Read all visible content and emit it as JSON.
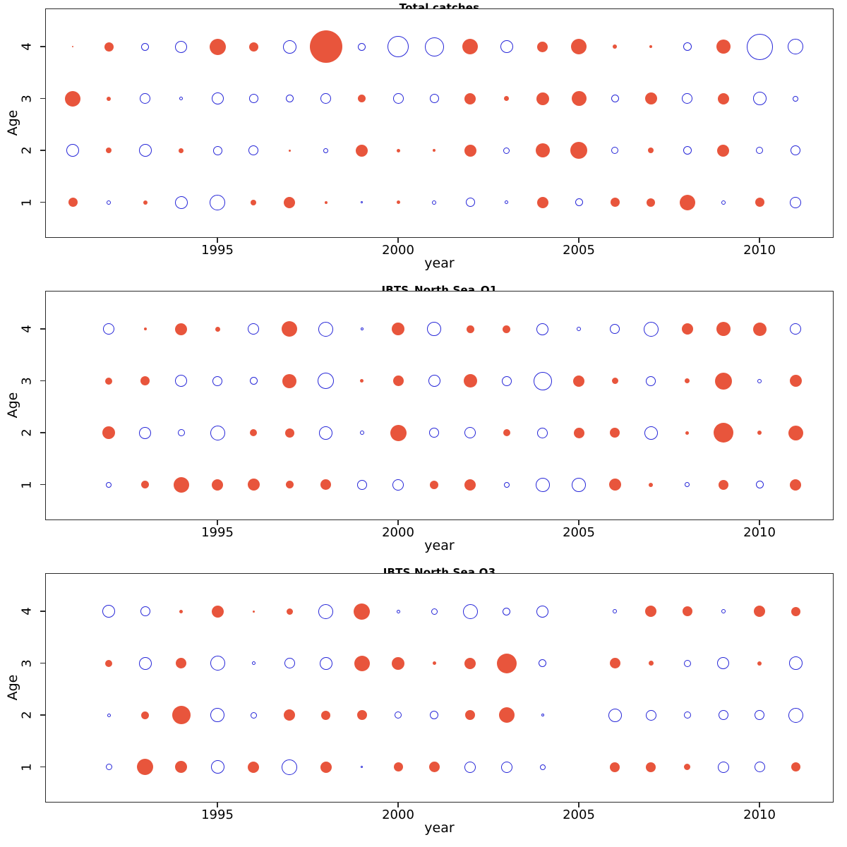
{
  "figure": {
    "background": "#ffffff",
    "positive_color": "#e8553c",
    "negative_color": "#2727d8",
    "axis_color": "#2b2b2b"
  },
  "chart_data": [
    {
      "type": "scatter",
      "subtype": "bubble-residual-plot",
      "title": "Total catches",
      "xlabel": "year",
      "ylabel": "Age",
      "x_ticks": [
        1995,
        2000,
        2005,
        2010
      ],
      "y_ticks": [
        4,
        3,
        2,
        1
      ],
      "xlim": [
        1990.3,
        2011.9
      ],
      "ylim": [
        0.3,
        4.7
      ],
      "grid": false,
      "legend_position": "none",
      "encoding": {
        "positive": "filled red circle",
        "negative": "open blue circle",
        "value": "signed bubble radius (px)"
      },
      "years": [
        1991,
        1992,
        1993,
        1994,
        1995,
        1996,
        1997,
        1998,
        1999,
        2000,
        2001,
        2002,
        2003,
        2004,
        2005,
        2006,
        2007,
        2008,
        2009,
        2010,
        2011
      ],
      "series": [
        {
          "name": "age 4",
          "age": 4,
          "values": [
            1,
            6.5,
            -5.5,
            -8.5,
            11.5,
            6.5,
            -9.5,
            23,
            -5.5,
            -15,
            -13.5,
            11,
            -9,
            7.5,
            11,
            3,
            2,
            -6,
            10,
            -18.5,
            -11
          ]
        },
        {
          "name": "age 3",
          "age": 3,
          "values": [
            11,
            3,
            -7.5,
            -2.5,
            -8.5,
            -6.5,
            -5.5,
            -7.5,
            5.5,
            -7.5,
            -6.5,
            8,
            3.5,
            9,
            10.5,
            -5.5,
            8.5,
            -7.5,
            8,
            -9.5,
            -4
          ]
        },
        {
          "name": "age 2",
          "age": 2,
          "values": [
            -9,
            4,
            -9,
            3.5,
            -6.5,
            -7,
            1.5,
            -3.5,
            8.5,
            2.5,
            2,
            8.5,
            -4.5,
            10,
            12,
            -5,
            4,
            -6,
            8.5,
            -5,
            -7
          ]
        },
        {
          "name": "age 1",
          "age": 1,
          "values": [
            6.5,
            -3,
            3,
            -9,
            -11,
            4,
            8,
            2,
            -1.5,
            2.5,
            -3,
            -6.5,
            -2.5,
            8,
            -5.5,
            6.5,
            6,
            11,
            -3,
            6.5,
            -8
          ]
        }
      ]
    },
    {
      "type": "scatter",
      "subtype": "bubble-residual-plot",
      "title": "IBTS_North Sea_Q1",
      "xlabel": "year",
      "ylabel": "Age",
      "x_ticks": [
        1995,
        2000,
        2005,
        2010
      ],
      "y_ticks": [
        4,
        3,
        2,
        1
      ],
      "xlim": [
        1990.3,
        2011.9
      ],
      "ylim": [
        0.3,
        4.7
      ],
      "grid": false,
      "legend_position": "none",
      "encoding": {
        "positive": "filled red circle",
        "negative": "open blue circle",
        "value": "signed bubble radius (px)"
      },
      "years": [
        1992,
        1993,
        1994,
        1995,
        1996,
        1997,
        1998,
        1999,
        2000,
        2001,
        2002,
        2003,
        2004,
        2005,
        2006,
        2007,
        2008,
        2009,
        2010,
        2011
      ],
      "series": [
        {
          "name": "age 4",
          "age": 4,
          "values": [
            -8,
            2,
            8.5,
            3.5,
            -8,
            11,
            -10.5,
            -2,
            9,
            -10,
            5.5,
            5.5,
            -8.5,
            -3,
            -7,
            -10.5,
            8,
            10,
            9.5,
            -8
          ]
        },
        {
          "name": "age 3",
          "age": 3,
          "values": [
            5,
            6.5,
            -8.5,
            -7,
            -5.5,
            10,
            -11.5,
            2.5,
            7.5,
            -8.5,
            9.5,
            -7,
            -13,
            8,
            4.5,
            -7,
            3.5,
            12,
            -3,
            8.5
          ]
        },
        {
          "name": "age 2",
          "age": 2,
          "values": [
            9,
            -8.5,
            -5,
            -10.5,
            5,
            6.5,
            -9.5,
            -3,
            11.5,
            -7,
            -8,
            5,
            -7.5,
            7.5,
            7,
            -9.5,
            2.5,
            14,
            3,
            10.5
          ]
        },
        {
          "name": "age 1",
          "age": 1,
          "values": [
            -4,
            5.5,
            11,
            8,
            8.5,
            5.5,
            7.5,
            -7,
            -8,
            6,
            8,
            -4,
            -10,
            -10,
            8.5,
            3,
            -3.5,
            7,
            -5.5,
            8
          ]
        }
      ]
    },
    {
      "type": "scatter",
      "subtype": "bubble-residual-plot",
      "title": "IBTS North Sea Q3",
      "xlabel": "year",
      "ylabel": "Age",
      "x_ticks": [
        1995,
        2000,
        2005,
        2010
      ],
      "y_ticks": [
        4,
        3,
        2,
        1
      ],
      "xlim": [
        1990.3,
        2011.9
      ],
      "ylim": [
        0.3,
        4.7
      ],
      "grid": false,
      "legend_position": "none",
      "encoding": {
        "positive": "filled red circle",
        "negative": "open blue circle",
        "value": "signed bubble radius (px)",
        "zero": "no mark (no data in 2005)"
      },
      "years": [
        1992,
        1993,
        1994,
        1995,
        1996,
        1997,
        1998,
        1999,
        2000,
        2001,
        2002,
        2003,
        2004,
        2005,
        2006,
        2007,
        2008,
        2009,
        2010,
        2011
      ],
      "series": [
        {
          "name": "age 4",
          "age": 4,
          "values": [
            -9,
            -7,
            2.5,
            8.5,
            1.5,
            4.5,
            -10.5,
            11.5,
            -2.5,
            -4.5,
            -10.5,
            -5.5,
            -8.5,
            0,
            -3,
            8,
            7,
            -3,
            8,
            6.5
          ]
        },
        {
          "name": "age 3",
          "age": 3,
          "values": [
            5,
            -9,
            7.5,
            -10.5,
            -2.5,
            -7.5,
            -9,
            11,
            9,
            2.5,
            8,
            14,
            -5.5,
            0,
            7.5,
            3.5,
            -5,
            -8.5,
            3,
            -9.5
          ]
        },
        {
          "name": "age 2",
          "age": 2,
          "values": [
            -2.5,
            5.5,
            13,
            -10,
            -4.5,
            8,
            6.5,
            7,
            -5,
            -6,
            7,
            11,
            -2,
            0,
            -9.5,
            -7.5,
            -5,
            -7,
            -7,
            -10.5
          ]
        },
        {
          "name": "age 1",
          "age": 1,
          "values": [
            -4.5,
            11.5,
            8.5,
            -9.5,
            8,
            -11,
            8,
            -1.5,
            6.5,
            7.5,
            -8,
            -8,
            -4,
            0,
            7,
            7,
            4.5,
            -8,
            -7.5,
            6.5
          ]
        }
      ]
    }
  ]
}
